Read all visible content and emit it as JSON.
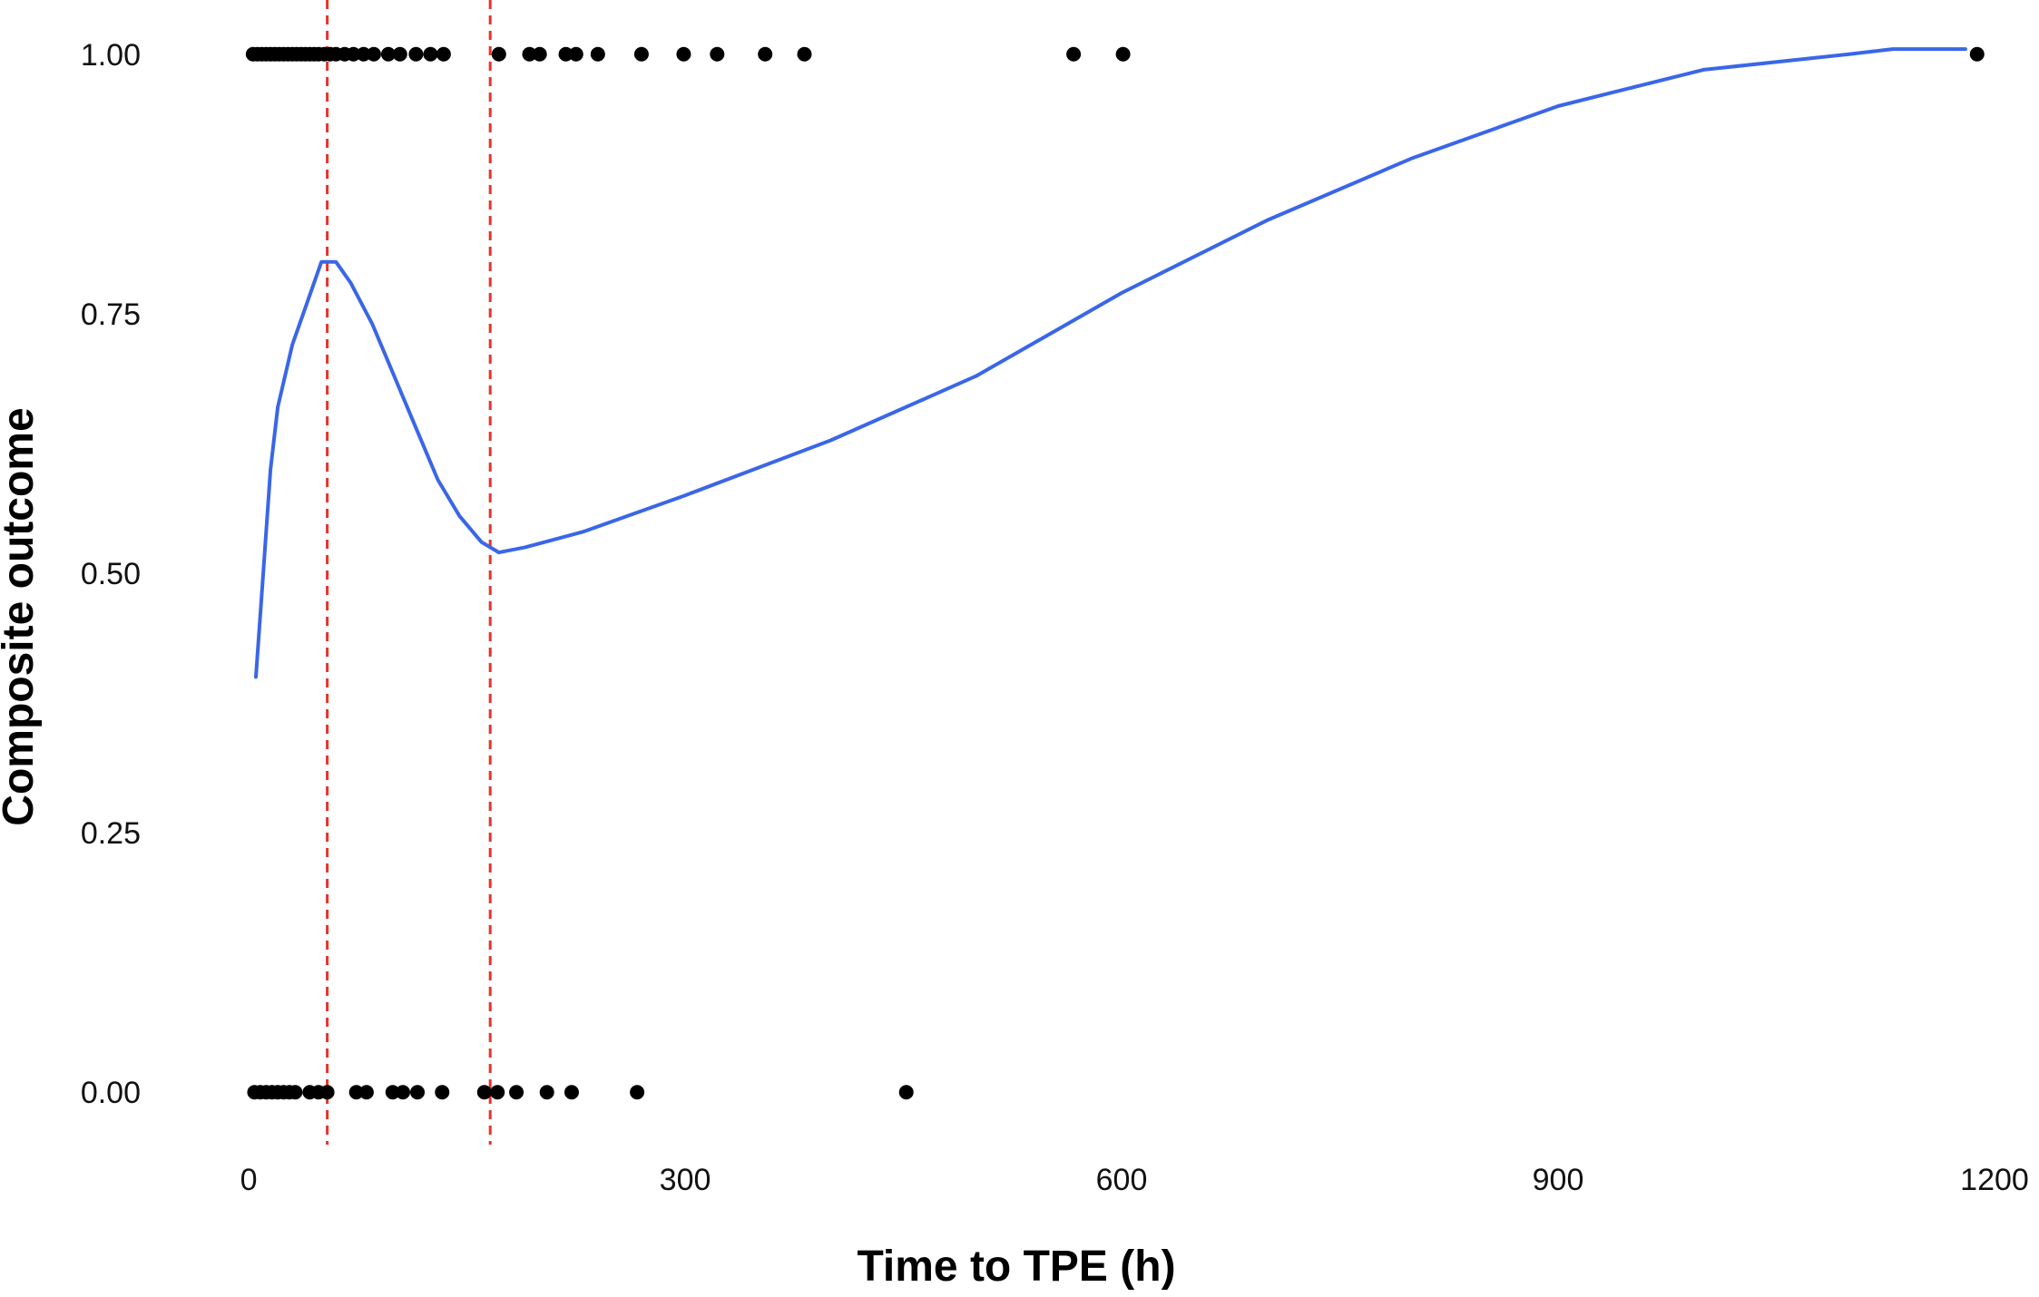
{
  "chart_data": {
    "type": "scatter",
    "xlabel": "Time to TPE (h)",
    "ylabel": "Composite outcome",
    "xlim": [
      -10,
      1200
    ],
    "ylim": [
      -0.04,
      1.04
    ],
    "x_ticks": [
      {
        "value": 0,
        "label": "0"
      },
      {
        "value": 300,
        "label": "300"
      },
      {
        "value": 600,
        "label": "600"
      },
      {
        "value": 900,
        "label": "900"
      },
      {
        "value": 1200,
        "label": "1200"
      }
    ],
    "y_ticks": [
      {
        "value": 0,
        "label": "0.00"
      },
      {
        "value": 0.25,
        "label": "0.25"
      },
      {
        "value": 0.5,
        "label": "0.50"
      },
      {
        "value": 0.75,
        "label": "0.75"
      },
      {
        "value": 1,
        "label": "1.00"
      }
    ],
    "grid": false,
    "legend": "none",
    "colors": {
      "points": "#000000",
      "smooth": "#3a66e8",
      "reference": "#e8322b"
    },
    "reference_lines_x": [
      54,
      166
    ],
    "points_outcome_1": [
      3,
      6,
      9,
      12,
      15,
      18,
      21,
      24,
      27,
      30,
      33,
      36,
      39,
      42,
      45,
      48,
      52,
      56,
      60,
      66,
      72,
      79,
      86,
      96,
      104,
      115,
      125,
      134,
      172,
      193,
      200,
      218,
      225,
      240,
      270,
      299,
      322,
      355,
      382,
      567,
      601,
      1188
    ],
    "points_outcome_0": [
      4,
      8,
      12,
      16,
      20,
      24,
      28,
      32,
      42,
      48,
      54,
      74,
      81,
      99,
      106,
      116,
      133,
      162,
      171,
      184,
      205,
      222,
      267,
      452
    ],
    "series": [
      {
        "type": "line",
        "points": [
          [
            5,
            0.4
          ],
          [
            10,
            0.5
          ],
          [
            15,
            0.6
          ],
          [
            20,
            0.66
          ],
          [
            30,
            0.72
          ],
          [
            40,
            0.76
          ],
          [
            50,
            0.8
          ],
          [
            60,
            0.8
          ],
          [
            70,
            0.78
          ],
          [
            85,
            0.74
          ],
          [
            100,
            0.69
          ],
          [
            115,
            0.64
          ],
          [
            130,
            0.59
          ],
          [
            145,
            0.555
          ],
          [
            160,
            0.53
          ],
          [
            172,
            0.52
          ],
          [
            190,
            0.525
          ],
          [
            230,
            0.54
          ],
          [
            300,
            0.575
          ],
          [
            400,
            0.628
          ],
          [
            500,
            0.69
          ],
          [
            600,
            0.77
          ],
          [
            700,
            0.84
          ],
          [
            800,
            0.9
          ],
          [
            900,
            0.95
          ],
          [
            1000,
            0.985
          ],
          [
            1100,
            1.0
          ],
          [
            1130,
            1.005
          ],
          [
            1180,
            1.005
          ]
        ]
      }
    ]
  }
}
